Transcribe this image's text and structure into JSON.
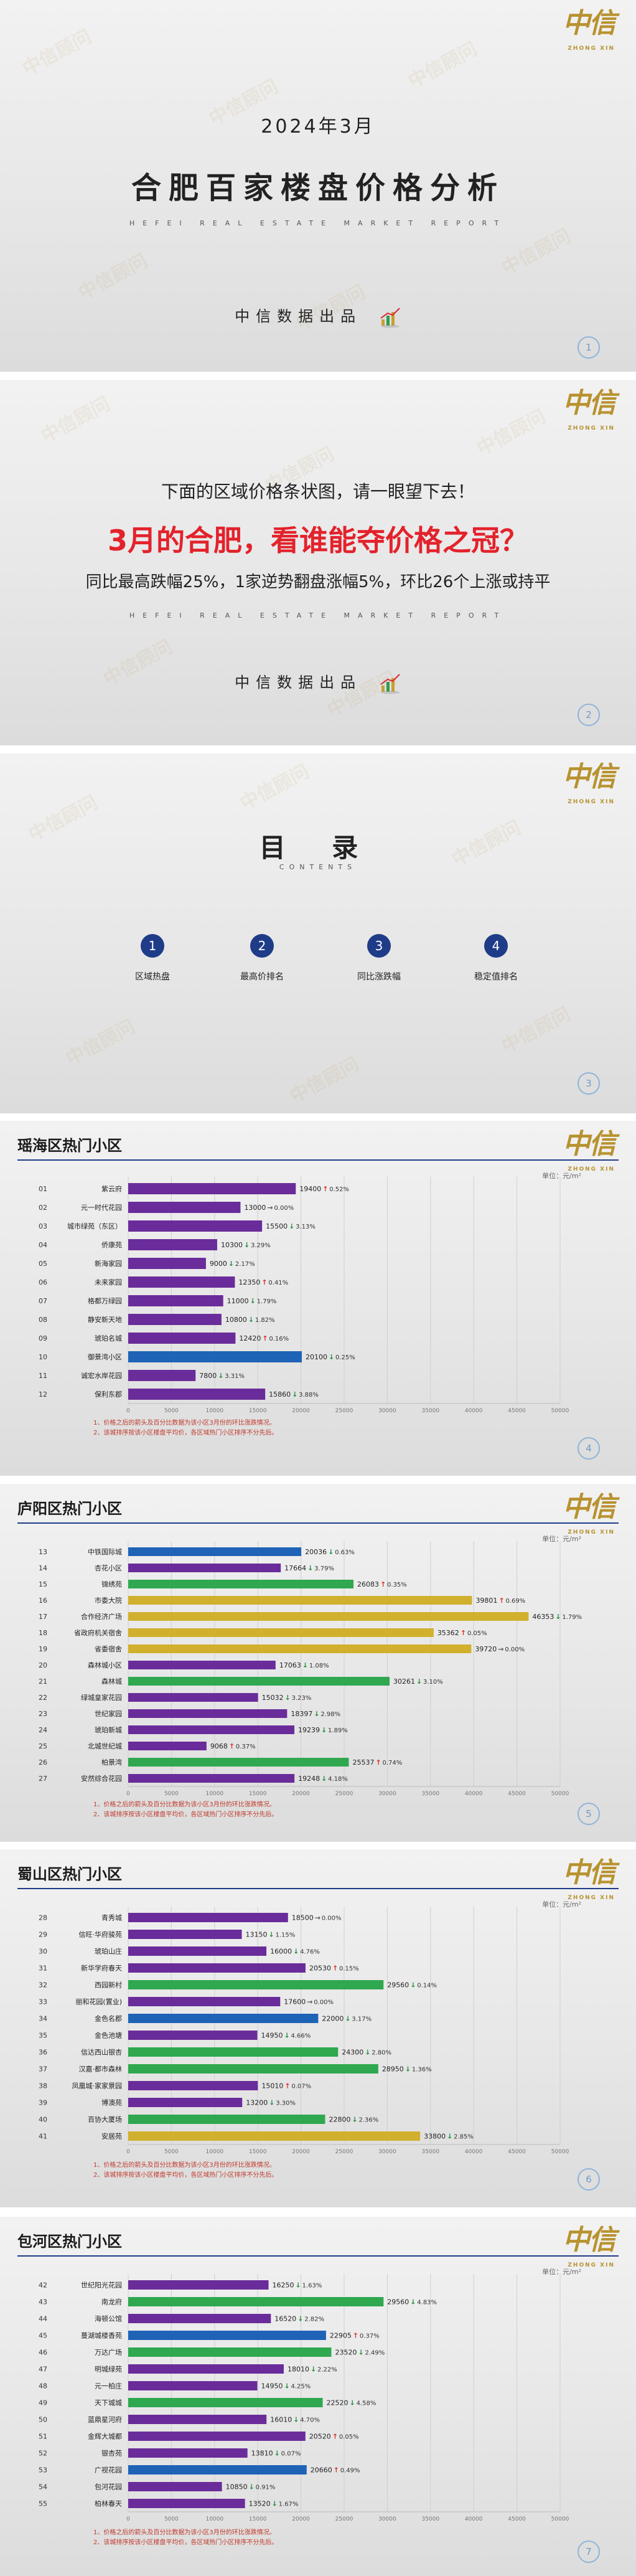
{
  "brand": {
    "logo_text": "中信",
    "logo_sub": "ZHONG XIN"
  },
  "cover": {
    "date": "2024年3月",
    "title": "合肥百家楼盘价格分析",
    "subtitle_en": "HEFEI REAL ESTATE MARKET REPORT",
    "producer": "中信数据出品",
    "page": "1"
  },
  "intro": {
    "line1": "下面的区域价格条状图，请一眼望下去！",
    "headline": "3月的合肥，看谁能夺价格之冠？",
    "line3": "同比最高跌幅25%，1家逆势翻盘涨幅5%，环比26个上涨或持平",
    "subtitle_en": "HEFEI REAL ESTATE MARKET REPORT",
    "producer": "中信数据出品",
    "page": "2"
  },
  "toc": {
    "title": "目 录",
    "subtitle": "CONTENTS",
    "page": "3",
    "items": [
      {
        "num": "1",
        "label": "区域热盘"
      },
      {
        "num": "2",
        "label": "最高价排名"
      },
      {
        "num": "3",
        "label": "同比涨跌幅"
      },
      {
        "num": "4",
        "label": "稳定值排名"
      }
    ]
  },
  "unit_label": "单位：元/m²",
  "notes": [
    "1、价格之后的箭头及百分比数据为该小区3月份的环比涨跌情况。",
    "2、该城排序按该小区楼盘平均价，各区域热门小区排序不分先后。"
  ],
  "colors": {
    "purple": "#6a2c9a",
    "blue": "#1f63b7",
    "gold": "#d1b02e",
    "green": "#2fa84f",
    "up": "#d93025",
    "down": "#1e8e3e"
  },
  "chart_data": [
    {
      "type": "bar",
      "orientation": "horizontal",
      "title": "瑶海区热门小区",
      "page": "4",
      "xlim": [
        0,
        50000
      ],
      "xticks": [
        "0",
        "5000",
        "10000",
        "15000",
        "20000",
        "25000",
        "30000",
        "35000",
        "40000",
        "45000",
        "50000"
      ],
      "rows": [
        {
          "idx": "01",
          "name": "紫云府",
          "value": 19400,
          "color": "purple",
          "dir": "up",
          "pct": "0.52%"
        },
        {
          "idx": "02",
          "name": "元一时代花园",
          "value": 13000,
          "color": "purple",
          "dir": "flat",
          "pct": "0.00%"
        },
        {
          "idx": "03",
          "name": "城市绿苑（东区）",
          "value": 15500,
          "color": "purple",
          "dir": "down",
          "pct": "3.13%"
        },
        {
          "idx": "04",
          "name": "侨康苑",
          "value": 10300,
          "color": "purple",
          "dir": "down",
          "pct": "3.29%"
        },
        {
          "idx": "05",
          "name": "新海家园",
          "value": 9000,
          "color": "purple",
          "dir": "down",
          "pct": "2.17%"
        },
        {
          "idx": "06",
          "name": "未来家园",
          "value": 12350,
          "color": "purple",
          "dir": "up",
          "pct": "0.41%"
        },
        {
          "idx": "07",
          "name": "格都万绿园",
          "value": 11000,
          "color": "purple",
          "dir": "down",
          "pct": "1.79%"
        },
        {
          "idx": "08",
          "name": "静安新天地",
          "value": 10800,
          "color": "purple",
          "dir": "down",
          "pct": "1.82%"
        },
        {
          "idx": "09",
          "name": "琥珀名城",
          "value": 12420,
          "color": "purple",
          "dir": "up",
          "pct": "0.16%"
        },
        {
          "idx": "10",
          "name": "御景湾小区",
          "value": 20100,
          "color": "blue",
          "dir": "down",
          "pct": "0.25%"
        },
        {
          "idx": "11",
          "name": "诚宏水岸花园",
          "value": 7800,
          "color": "purple",
          "dir": "down",
          "pct": "3.31%"
        },
        {
          "idx": "12",
          "name": "保利东郡",
          "value": 15860,
          "color": "purple",
          "dir": "down",
          "pct": "3.88%"
        }
      ]
    },
    {
      "type": "bar",
      "orientation": "horizontal",
      "title": "庐阳区热门小区",
      "page": "5",
      "xlim": [
        0,
        50000
      ],
      "xticks": [
        "0",
        "5000",
        "10000",
        "15000",
        "20000",
        "25000",
        "30000",
        "35000",
        "40000",
        "45000",
        "50000"
      ],
      "rows": [
        {
          "idx": "13",
          "name": "中铁国际城",
          "value": 20036,
          "color": "blue",
          "dir": "down",
          "pct": "0.63%"
        },
        {
          "idx": "14",
          "name": "杏花小区",
          "value": 17664,
          "color": "purple",
          "dir": "down",
          "pct": "3.79%"
        },
        {
          "idx": "15",
          "name": "锦绣苑",
          "value": 26083,
          "color": "green",
          "dir": "up",
          "pct": "0.35%"
        },
        {
          "idx": "16",
          "name": "市委大院",
          "value": 39801,
          "color": "gold",
          "dir": "up",
          "pct": "0.69%"
        },
        {
          "idx": "17",
          "name": "合作经济广场",
          "value": 46353,
          "color": "gold",
          "dir": "down",
          "pct": "1.79%"
        },
        {
          "idx": "18",
          "name": "省政府机关宿舍",
          "value": 35362,
          "color": "gold",
          "dir": "up",
          "pct": "0.05%"
        },
        {
          "idx": "19",
          "name": "省委宿舍",
          "value": 39720,
          "color": "gold",
          "dir": "flat",
          "pct": "0.00%"
        },
        {
          "idx": "20",
          "name": "森林城小区",
          "value": 17063,
          "color": "purple",
          "dir": "down",
          "pct": "1.08%"
        },
        {
          "idx": "21",
          "name": "森林城",
          "value": 30261,
          "color": "green",
          "dir": "down",
          "pct": "3.10%"
        },
        {
          "idx": "22",
          "name": "绿城皇家花园",
          "value": 15032,
          "color": "purple",
          "dir": "down",
          "pct": "3.23%"
        },
        {
          "idx": "23",
          "name": "世纪家园",
          "value": 18397,
          "color": "purple",
          "dir": "down",
          "pct": "2.98%"
        },
        {
          "idx": "24",
          "name": "琥珀新城",
          "value": 19239,
          "color": "purple",
          "dir": "down",
          "pct": "1.89%"
        },
        {
          "idx": "25",
          "name": "北城世纪城",
          "value": 9068,
          "color": "purple",
          "dir": "up",
          "pct": "0.37%"
        },
        {
          "idx": "26",
          "name": "柏景湾",
          "value": 25537,
          "color": "green",
          "dir": "up",
          "pct": "0.74%"
        },
        {
          "idx": "27",
          "name": "安然综合花园",
          "value": 19248,
          "color": "purple",
          "dir": "down",
          "pct": "4.18%"
        }
      ]
    },
    {
      "type": "bar",
      "orientation": "horizontal",
      "title": "蜀山区热门小区",
      "page": "6",
      "xlim": [
        0,
        50000
      ],
      "xticks": [
        "0",
        "5000",
        "10000",
        "15000",
        "20000",
        "25000",
        "30000",
        "35000",
        "40000",
        "45000",
        "50000"
      ],
      "rows": [
        {
          "idx": "28",
          "name": "青秀城",
          "value": 18500,
          "color": "purple",
          "dir": "flat",
          "pct": "0.00%"
        },
        {
          "idx": "29",
          "name": "信旺·华府骏苑",
          "value": 13150,
          "color": "purple",
          "dir": "down",
          "pct": "1.15%"
        },
        {
          "idx": "30",
          "name": "琥珀山庄",
          "value": 16000,
          "color": "purple",
          "dir": "down",
          "pct": "4.76%"
        },
        {
          "idx": "31",
          "name": "新华学府春天",
          "value": 20530,
          "color": "purple",
          "dir": "up",
          "pct": "0.15%"
        },
        {
          "idx": "32",
          "name": "西园新村",
          "value": 29560,
          "color": "green",
          "dir": "down",
          "pct": "0.14%"
        },
        {
          "idx": "33",
          "name": "丽和花园(置业)",
          "value": 17600,
          "color": "purple",
          "dir": "flat",
          "pct": "0.00%"
        },
        {
          "idx": "34",
          "name": "金色名郡",
          "value": 22000,
          "color": "blue",
          "dir": "down",
          "pct": "3.17%"
        },
        {
          "idx": "35",
          "name": "金色池塘",
          "value": 14950,
          "color": "purple",
          "dir": "down",
          "pct": "4.66%"
        },
        {
          "idx": "36",
          "name": "信达西山银杏",
          "value": 24300,
          "color": "green",
          "dir": "down",
          "pct": "2.80%"
        },
        {
          "idx": "37",
          "name": "汉嘉·都市森林",
          "value": 28950,
          "color": "green",
          "dir": "down",
          "pct": "1.36%"
        },
        {
          "idx": "38",
          "name": "凤凰城·家家景园",
          "value": 15010,
          "color": "purple",
          "dir": "up",
          "pct": "0.07%"
        },
        {
          "idx": "39",
          "name": "博澳苑",
          "value": 13200,
          "color": "purple",
          "dir": "down",
          "pct": "3.30%"
        },
        {
          "idx": "40",
          "name": "百协大厦场",
          "value": 22800,
          "color": "green",
          "dir": "down",
          "pct": "2.36%"
        },
        {
          "idx": "41",
          "name": "安居苑",
          "value": 33800,
          "color": "gold",
          "dir": "down",
          "pct": "2.85%"
        }
      ]
    },
    {
      "type": "bar",
      "orientation": "horizontal",
      "title": "包河区热门小区",
      "page": "7",
      "xlim": [
        0,
        50000
      ],
      "xticks": [
        "0",
        "5000",
        "10000",
        "15000",
        "20000",
        "25000",
        "30000",
        "35000",
        "40000",
        "45000",
        "50000"
      ],
      "rows": [
        {
          "idx": "42",
          "name": "世纪阳光花园",
          "value": 16250,
          "color": "purple",
          "dir": "down",
          "pct": "1.63%"
        },
        {
          "idx": "43",
          "name": "南龙府",
          "value": 29560,
          "color": "green",
          "dir": "down",
          "pct": "4.83%"
        },
        {
          "idx": "44",
          "name": "海顿公馆",
          "value": 16520,
          "color": "purple",
          "dir": "down",
          "pct": "2.82%"
        },
        {
          "idx": "45",
          "name": "蔓湖城楼香苑",
          "value": 22905,
          "color": "blue",
          "dir": "up",
          "pct": "0.37%"
        },
        {
          "idx": "46",
          "name": "万达广场",
          "value": 23520,
          "color": "green",
          "dir": "down",
          "pct": "2.49%"
        },
        {
          "idx": "47",
          "name": "明城绿苑",
          "value": 18010,
          "color": "purple",
          "dir": "down",
          "pct": "2.22%"
        },
        {
          "idx": "48",
          "name": "元一柏庄",
          "value": 14950,
          "color": "purple",
          "dir": "down",
          "pct": "4.25%"
        },
        {
          "idx": "49",
          "name": "天下城城",
          "value": 22520,
          "color": "green",
          "dir": "down",
          "pct": "4.58%"
        },
        {
          "idx": "50",
          "name": "蓝鼎星河府",
          "value": 16010,
          "color": "purple",
          "dir": "down",
          "pct": "4.70%"
        },
        {
          "idx": "51",
          "name": "金辉大城都",
          "value": 20520,
          "color": "purple",
          "dir": "up",
          "pct": "0.05%"
        },
        {
          "idx": "52",
          "name": "银杏苑",
          "value": 13810,
          "color": "purple",
          "dir": "down",
          "pct": "0.07%"
        },
        {
          "idx": "53",
          "name": "广视花园",
          "value": 20660,
          "color": "blue",
          "dir": "up",
          "pct": "0.49%"
        },
        {
          "idx": "54",
          "name": "包河花园",
          "value": 10850,
          "color": "purple",
          "dir": "down",
          "pct": "0.91%"
        },
        {
          "idx": "55",
          "name": "柏林春天",
          "value": 13520,
          "color": "purple",
          "dir": "down",
          "pct": "1.67%"
        }
      ]
    }
  ]
}
